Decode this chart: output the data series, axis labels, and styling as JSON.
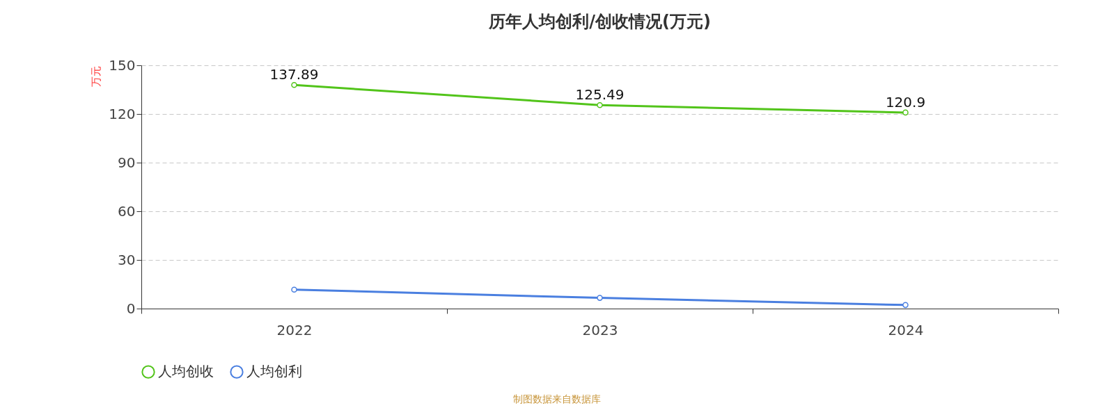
{
  "chart_data": {
    "type": "line",
    "title": "历年人均创利/创收情况(万元)",
    "ylabel": "万元",
    "categories": [
      "2022",
      "2023",
      "2024"
    ],
    "series": [
      {
        "name": "人均创收",
        "color": "#52c41a",
        "values": [
          137.89,
          125.49,
          120.9
        ],
        "value_labels": [
          "137.89",
          "125.49",
          "120.9"
        ]
      },
      {
        "name": "人均创利",
        "color": "#4a7fe0",
        "values": [
          11.7,
          6.6,
          2.2
        ]
      }
    ],
    "ylim": [
      0,
      150
    ],
    "yticks": [
      0,
      30,
      60,
      90,
      120,
      150
    ],
    "grid": "y",
    "legend": "bottom",
    "marker": "circle",
    "line_style": "solid",
    "annotations": [
      "制图数据来自数据库"
    ]
  }
}
